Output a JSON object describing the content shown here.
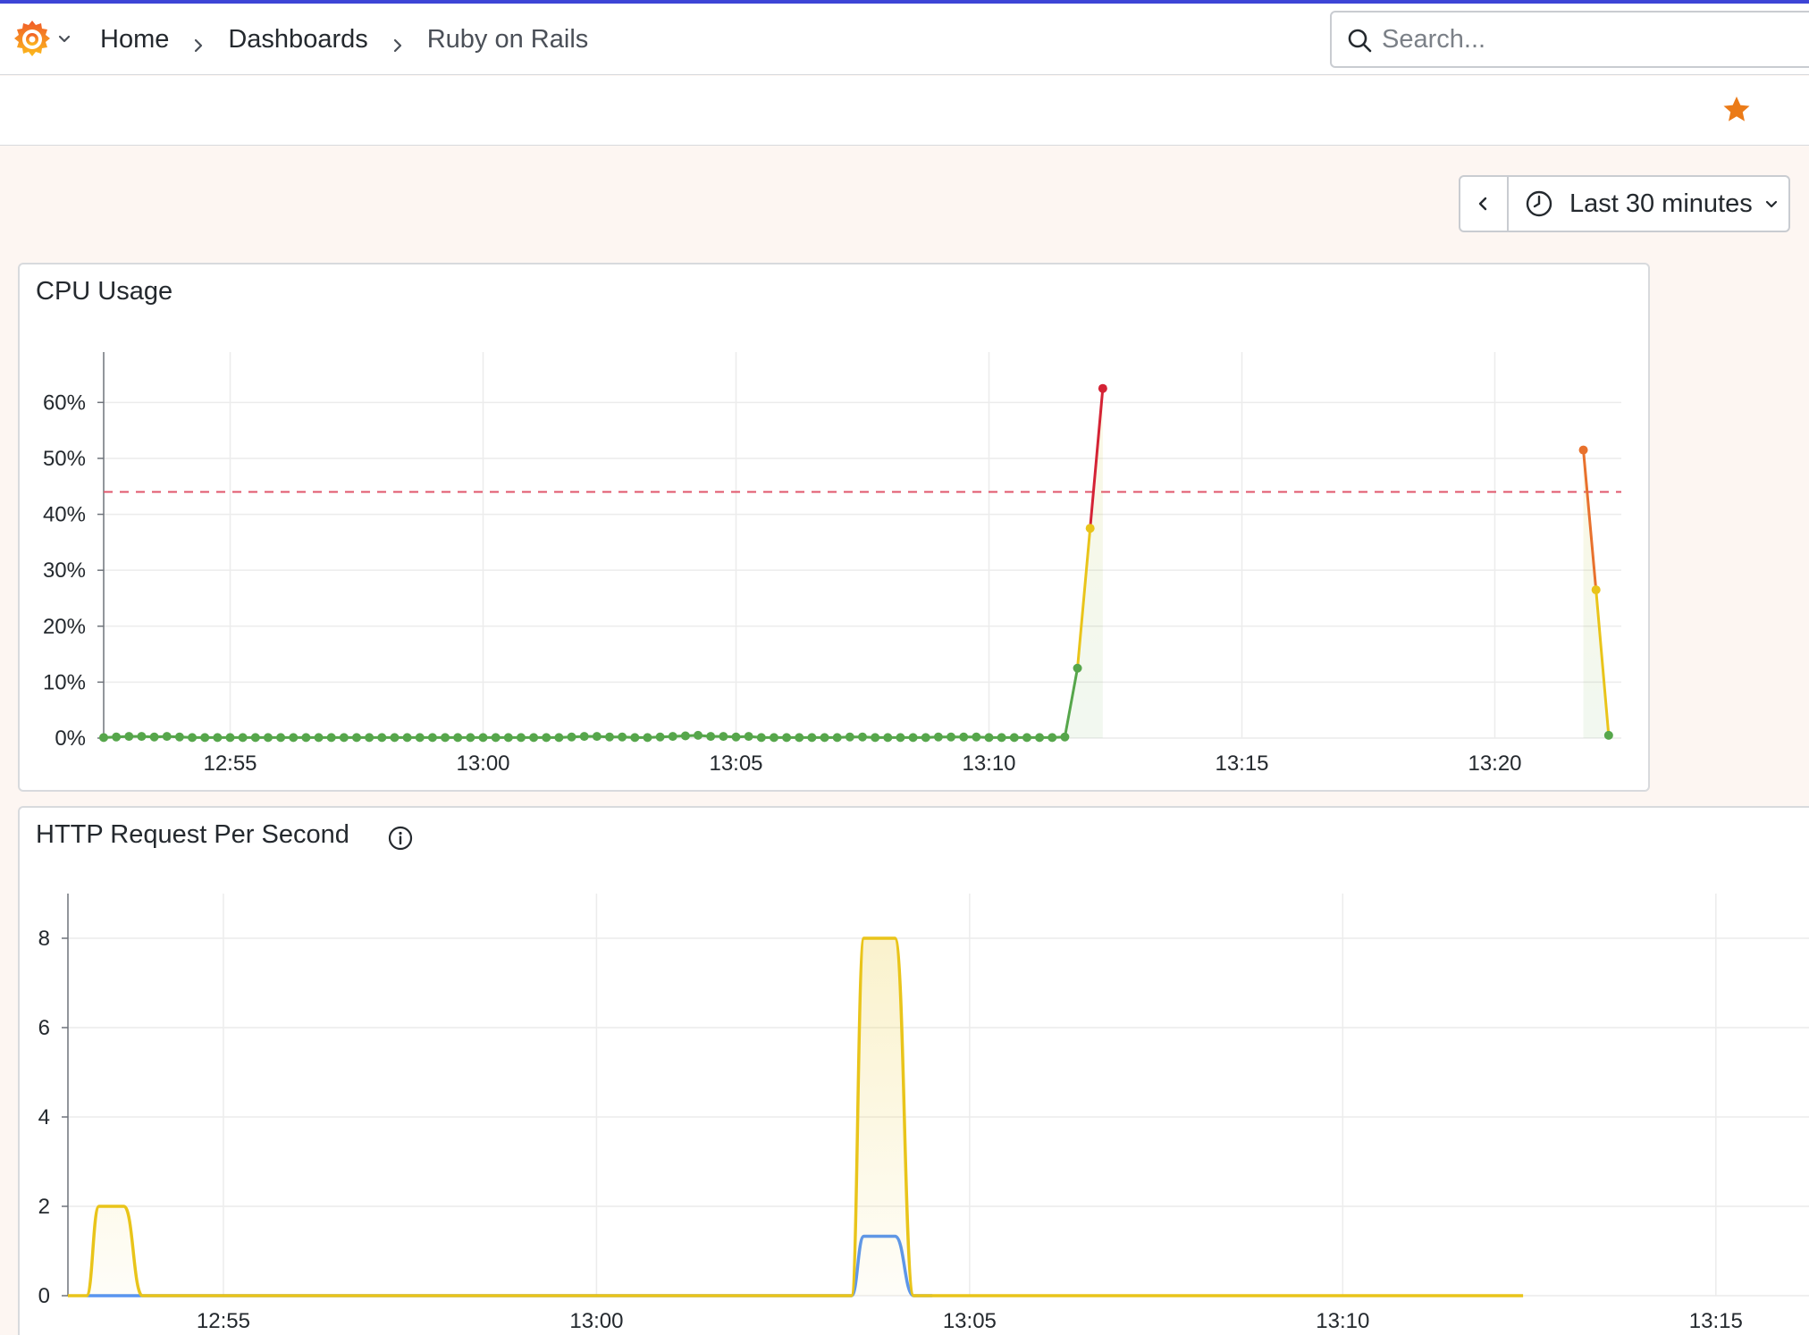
{
  "colors": {
    "accent": "#3d45d6",
    "green": "#56a64b",
    "yellow": "#e9c41a",
    "orange": "#e8712d",
    "red": "#d42335",
    "blue": "#5794f2",
    "threshold": "#e0566b",
    "star": "#eb7b18"
  },
  "topbar": {
    "logo_icon": "grafana-logo-icon",
    "breadcrumb": [
      "Home",
      "Dashboards",
      "Ruby on Rails"
    ],
    "search_placeholder": "Search..."
  },
  "toolbar": {
    "star_icon": "star-icon",
    "time_range": "Last 30 minutes"
  },
  "panels": [
    {
      "title": "CPU Usage",
      "has_info_icon": false
    },
    {
      "title": "HTTP Request Per Second",
      "has_info_icon": true
    }
  ],
  "chart_data": [
    {
      "type": "line",
      "title": "CPU Usage",
      "x_ticks": [
        "12:55",
        "13:00",
        "13:05",
        "13:10",
        "13:15",
        "13:20"
      ],
      "y_ticks": [
        "0%",
        "10%",
        "20%",
        "30%",
        "40%",
        "50%",
        "60%"
      ],
      "ylim": [
        0,
        69
      ],
      "xlim": [
        "12:52:30",
        "13:22:30"
      ],
      "threshold": 44,
      "grid": true,
      "series": [
        {
          "x": [
            "12:52:30",
            "12:52:45",
            "12:53:00",
            "12:53:15",
            "12:53:30",
            "12:53:45",
            "12:54:00",
            "12:54:15",
            "12:54:30",
            "12:54:45",
            "12:55:00",
            "12:55:15",
            "12:55:30",
            "12:55:45",
            "12:56:00",
            "12:56:15",
            "12:56:30",
            "12:56:45",
            "12:57:00",
            "12:57:15",
            "12:57:30",
            "12:57:45",
            "12:58:00",
            "12:58:15",
            "12:58:30",
            "12:58:45",
            "12:59:00",
            "12:59:15",
            "12:59:30",
            "12:59:45",
            "13:00:00",
            "13:00:15",
            "13:00:30",
            "13:00:45",
            "13:01:00",
            "13:01:15",
            "13:01:30",
            "13:01:45",
            "13:02:00",
            "13:02:15",
            "13:02:30",
            "13:02:45",
            "13:03:00",
            "13:03:15",
            "13:03:30",
            "13:03:45",
            "13:04:00",
            "13:04:15",
            "13:04:30",
            "13:04:45",
            "13:05:00",
            "13:05:15",
            "13:05:30",
            "13:05:45",
            "13:06:00",
            "13:06:15",
            "13:06:30",
            "13:06:45",
            "13:07:00",
            "13:07:15",
            "13:07:30",
            "13:07:45",
            "13:08:00",
            "13:08:15",
            "13:08:30",
            "13:08:45",
            "13:09:00",
            "13:09:15",
            "13:09:30",
            "13:09:45",
            "13:10:00",
            "13:10:15",
            "13:10:30",
            "13:10:45",
            "13:11:00",
            "13:11:15",
            "13:11:30",
            "13:11:45",
            "13:12:00",
            "13:12:15"
          ],
          "values": [
            0.1,
            0.2,
            0.3,
            0.3,
            0.2,
            0.3,
            0.2,
            0.1,
            0.1,
            0.1,
            0.1,
            0.1,
            0.1,
            0.1,
            0.1,
            0.1,
            0.1,
            0.1,
            0.1,
            0.1,
            0.1,
            0.1,
            0.1,
            0.1,
            0.1,
            0.1,
            0.1,
            0.1,
            0.1,
            0.1,
            0.1,
            0.1,
            0.1,
            0.1,
            0.1,
            0.1,
            0.1,
            0.2,
            0.3,
            0.3,
            0.2,
            0.2,
            0.1,
            0.1,
            0.2,
            0.3,
            0.4,
            0.5,
            0.3,
            0.3,
            0.2,
            0.3,
            0.1,
            0.1,
            0.1,
            0.1,
            0.1,
            0.1,
            0.1,
            0.2,
            0.2,
            0.1,
            0.1,
            0.1,
            0.1,
            0.1,
            0.2,
            0.2,
            0.2,
            0.2,
            0.1,
            0.1,
            0.1,
            0.1,
            0.1,
            0.1,
            0.2,
            12.5,
            37.5,
            62.5
          ]
        },
        {
          "x": [
            "13:21:45",
            "13:22:00",
            "13:22:15"
          ],
          "values": [
            51.5,
            26.5,
            0.5
          ]
        }
      ]
    },
    {
      "type": "area",
      "title": "HTTP Request Per Second",
      "x_ticks": [
        "12:55",
        "13:00",
        "13:05",
        "13:10",
        "13:15"
      ],
      "y_ticks": [
        "0",
        "2",
        "4",
        "6",
        "8"
      ],
      "ylim": [
        0,
        9
      ],
      "xlim": [
        "12:52:55",
        "13:16:35"
      ],
      "grid": true,
      "series": [
        {
          "color": "yellow",
          "x": [
            "12:52:55",
            "12:53:10",
            "12:53:20",
            "12:53:40",
            "12:53:55",
            "12:54:05",
            "13:03:10",
            "13:03:25",
            "13:03:35",
            "13:04:00",
            "13:04:15",
            "13:04:30",
            "13:12:25"
          ],
          "values": [
            0,
            0,
            2,
            2,
            0,
            0,
            0,
            0,
            8,
            8,
            0,
            0,
            0
          ]
        },
        {
          "color": "blue",
          "x": [
            "12:53:10",
            "12:53:55",
            "13:03:10",
            "13:03:25",
            "13:03:35",
            "13:04:00",
            "13:04:15",
            "13:04:30"
          ],
          "values": [
            0,
            0,
            0,
            0,
            1.33,
            1.33,
            0,
            0
          ]
        }
      ]
    }
  ]
}
